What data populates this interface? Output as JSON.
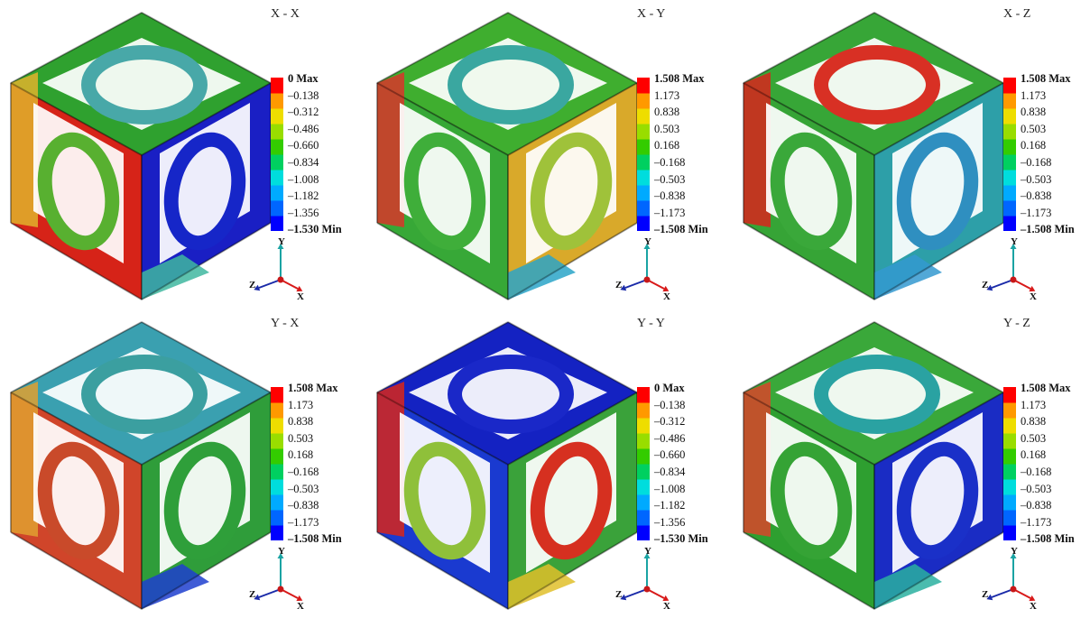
{
  "panels": [
    {
      "title": "X - X",
      "legend_labels": [
        "0 Max",
        "–0.138",
        "–0.312",
        "–0.486",
        "–0.660",
        "–0.834",
        "–1.008",
        "–1.182",
        "–1.356",
        "–1.530 Min"
      ],
      "face_colors": {
        "top": "#2fa12f",
        "left": "#d62318",
        "right": "#1a1fc4",
        "accent1": "#e0b32b",
        "accent2": "#3fb7a0",
        "ring_top": "#48a8a8",
        "ring_left": "#58b030",
        "ring_right": "#1626c8"
      }
    },
    {
      "title": "X - Y",
      "legend_labels": [
        "1.508 Max",
        "1.173",
        "0.838",
        "0.503",
        "0.168",
        "–0.168",
        "–0.503",
        "–0.838",
        "–1.173",
        "–1.508 Min"
      ],
      "face_colors": {
        "top": "#3fae2f",
        "left": "#37a837",
        "right": "#d9a92a",
        "accent1": "#d8362a",
        "accent2": "#2aa5c8",
        "ring_top": "#3aa7a0",
        "ring_left": "#3fae3a",
        "ring_right": "#9fc23a"
      }
    },
    {
      "title": "X - Z",
      "legend_labels": [
        "1.508 Max",
        "1.173",
        "0.838",
        "0.503",
        "0.168",
        "–0.168",
        "–0.503",
        "–0.838",
        "–1.173",
        "–1.508 Min"
      ],
      "face_colors": {
        "top": "#37a637",
        "left": "#36a436",
        "right": "#2d9fa8",
        "accent1": "#d8251c",
        "accent2": "#3499d0",
        "ring_top": "#d83024",
        "ring_left": "#3aa83a",
        "ring_right": "#2f8fc0"
      }
    },
    {
      "title": "Y - X",
      "legend_labels": [
        "1.508 Max",
        "1.173",
        "0.838",
        "0.503",
        "0.168",
        "–0.168",
        "–0.503",
        "–0.838",
        "–1.173",
        "–1.508 Min"
      ],
      "face_colors": {
        "top": "#3aa0b0",
        "left": "#d0452a",
        "right": "#2f9d3a",
        "accent1": "#e0a030",
        "accent2": "#1e3fcf",
        "ring_top": "#3b9fa0",
        "ring_left": "#c94a2a",
        "ring_right": "#2f9f3a"
      }
    },
    {
      "title": "Y - Y",
      "legend_labels": [
        "0 Max",
        "–0.138",
        "–0.312",
        "–0.486",
        "–0.660",
        "–0.834",
        "–1.008",
        "–1.182",
        "–1.356",
        "–1.530 Min"
      ],
      "face_colors": {
        "top": "#1422c2",
        "left": "#1a3ad0",
        "right": "#3aa23a",
        "accent1": "#d8261a",
        "accent2": "#e0c02a",
        "ring_top": "#1a28c8",
        "ring_left": "#8fc03a",
        "ring_right": "#d63020"
      }
    },
    {
      "title": "Y - Z",
      "legend_labels": [
        "1.508 Max",
        "1.173",
        "0.838",
        "0.503",
        "0.168",
        "–0.168",
        "–0.503",
        "–0.838",
        "–1.173",
        "–1.508 Min"
      ],
      "face_colors": {
        "top": "#3aa83a",
        "left": "#2e9f30",
        "right": "#1a2cc4",
        "accent1": "#d8452a",
        "accent2": "#2ab0a0",
        "ring_top": "#2aa2a2",
        "ring_left": "#35a335",
        "ring_right": "#1a30c8"
      }
    }
  ],
  "colorbar": [
    "#0000ff",
    "#0066ff",
    "#00aaff",
    "#00dddd",
    "#00d060",
    "#33cc00",
    "#99dd00",
    "#eedd00",
    "#ff9900",
    "#ff0000"
  ],
  "axis_labels": {
    "y": "Y",
    "z": "Z",
    "x": "X"
  },
  "axis_colors": {
    "y": "#1aa3a3",
    "z": "#1a2aa8",
    "x": "#d81a1a",
    "origin": "#c81818"
  }
}
